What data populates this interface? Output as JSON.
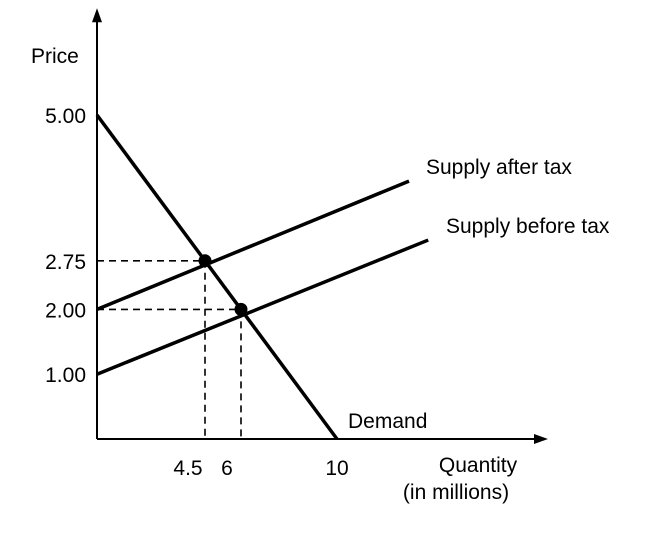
{
  "chart_data": {
    "type": "line",
    "title": "",
    "xlabel": [
      "Quantity",
      "(in millions)"
    ],
    "ylabel": "Price",
    "xlim": [
      0,
      19.5
    ],
    "ylim": [
      0,
      6.4
    ],
    "x_ticks": [
      {
        "value": 4.5,
        "label": "4.5"
      },
      {
        "value": 6,
        "label": "6"
      },
      {
        "value": 10,
        "label": "10"
      }
    ],
    "y_ticks": [
      {
        "value": 1.0,
        "label": "1.00"
      },
      {
        "value": 2.0,
        "label": "2.00"
      },
      {
        "value": 2.75,
        "label": "2.75"
      },
      {
        "value": 5.0,
        "label": "5.00"
      }
    ],
    "grid": false,
    "series": [
      {
        "name": "Demand",
        "x": [
          0,
          10
        ],
        "y": [
          5.0,
          0
        ]
      },
      {
        "name": "Supply after tax",
        "x": [
          0,
          13
        ],
        "y": [
          2.0,
          3.98
        ]
      },
      {
        "name": "Supply before tax",
        "x": [
          0,
          13.8
        ],
        "y": [
          1.0,
          3.07
        ]
      }
    ],
    "equilibria": [
      {
        "x": 4.5,
        "y": 2.75
      },
      {
        "x": 6,
        "y": 2.0
      }
    ]
  }
}
